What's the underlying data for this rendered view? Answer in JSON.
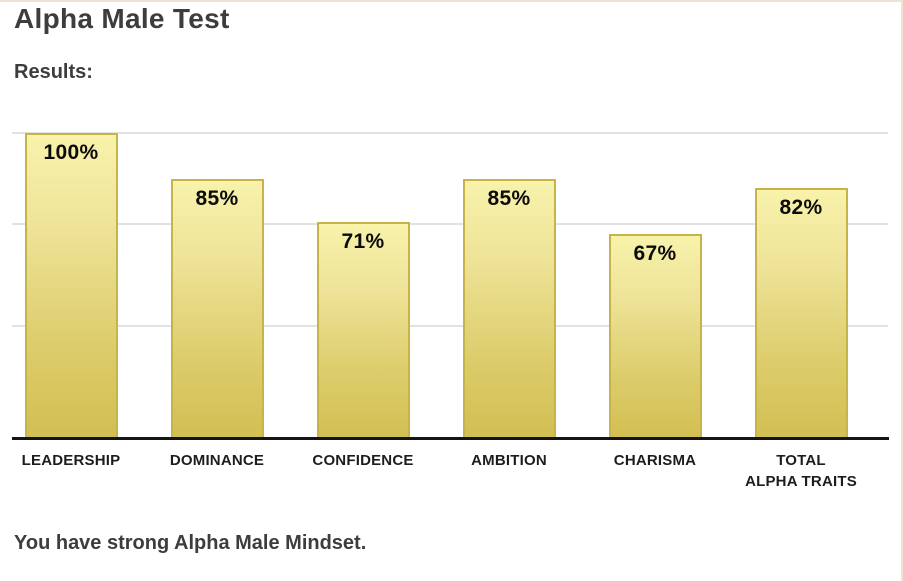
{
  "page": {
    "title": "Alpha Male Test",
    "results_label": "Results:",
    "footer_text": "You have strong Alpha Male Mindset."
  },
  "colors": {
    "page_border_accent": "#f3e2d2",
    "bar_gradient_top": "#f8f2ab",
    "bar_gradient_bottom": "#d2bf52",
    "bar_border": "#c6b449",
    "gridline": "#e2e2e2",
    "axis_line": "#141414",
    "heading_text": "#3d3d3d",
    "category_text": "#1d1d1d",
    "value_text": "#0b0b0b"
  },
  "chart_data": {
    "type": "bar",
    "title": "",
    "xlabel": "",
    "ylabel": "",
    "categories": [
      "LEADERSHIP",
      "DOMINANCE",
      "CONFIDENCE",
      "AMBITION",
      "CHARISMA",
      "TOTAL\nALPHA TRAITS"
    ],
    "values": [
      100,
      85,
      71,
      85,
      67,
      82
    ],
    "value_labels": [
      "100%",
      "85%",
      "71%",
      "85%",
      "67%",
      "82%"
    ],
    "ylim": [
      0,
      100
    ],
    "grid": "horizontal-light",
    "legend": "none",
    "bar_value_label_position": "inside-top"
  }
}
